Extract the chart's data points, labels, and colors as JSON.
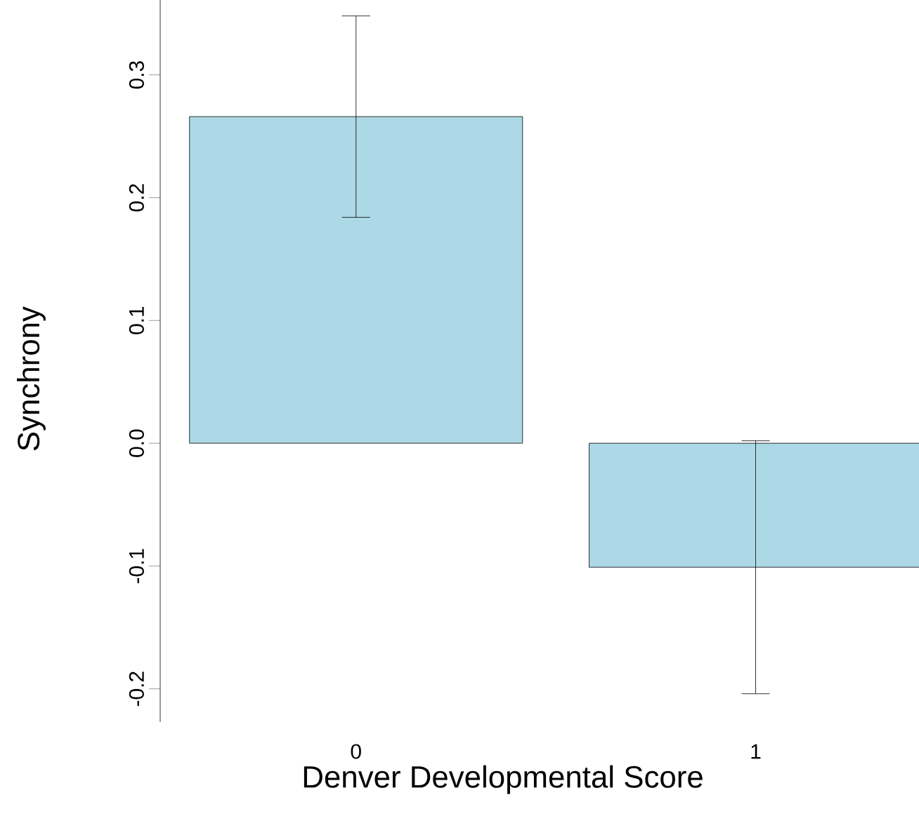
{
  "chart_data": {
    "type": "bar",
    "xlabel": "Denver Developmental Score",
    "ylabel": "Synchrony",
    "categories": [
      "0",
      "1"
    ],
    "values": [
      0.266,
      -0.101
    ],
    "errors": [
      0.082,
      0.103
    ],
    "color": "#add8e6",
    "ylim": [
      -0.227,
      0.361
    ],
    "yticks": [
      -0.2,
      -0.1,
      {
        "value": 0,
        "label": "0.0"
      },
      0.1,
      0.2,
      0.3
    ]
  }
}
